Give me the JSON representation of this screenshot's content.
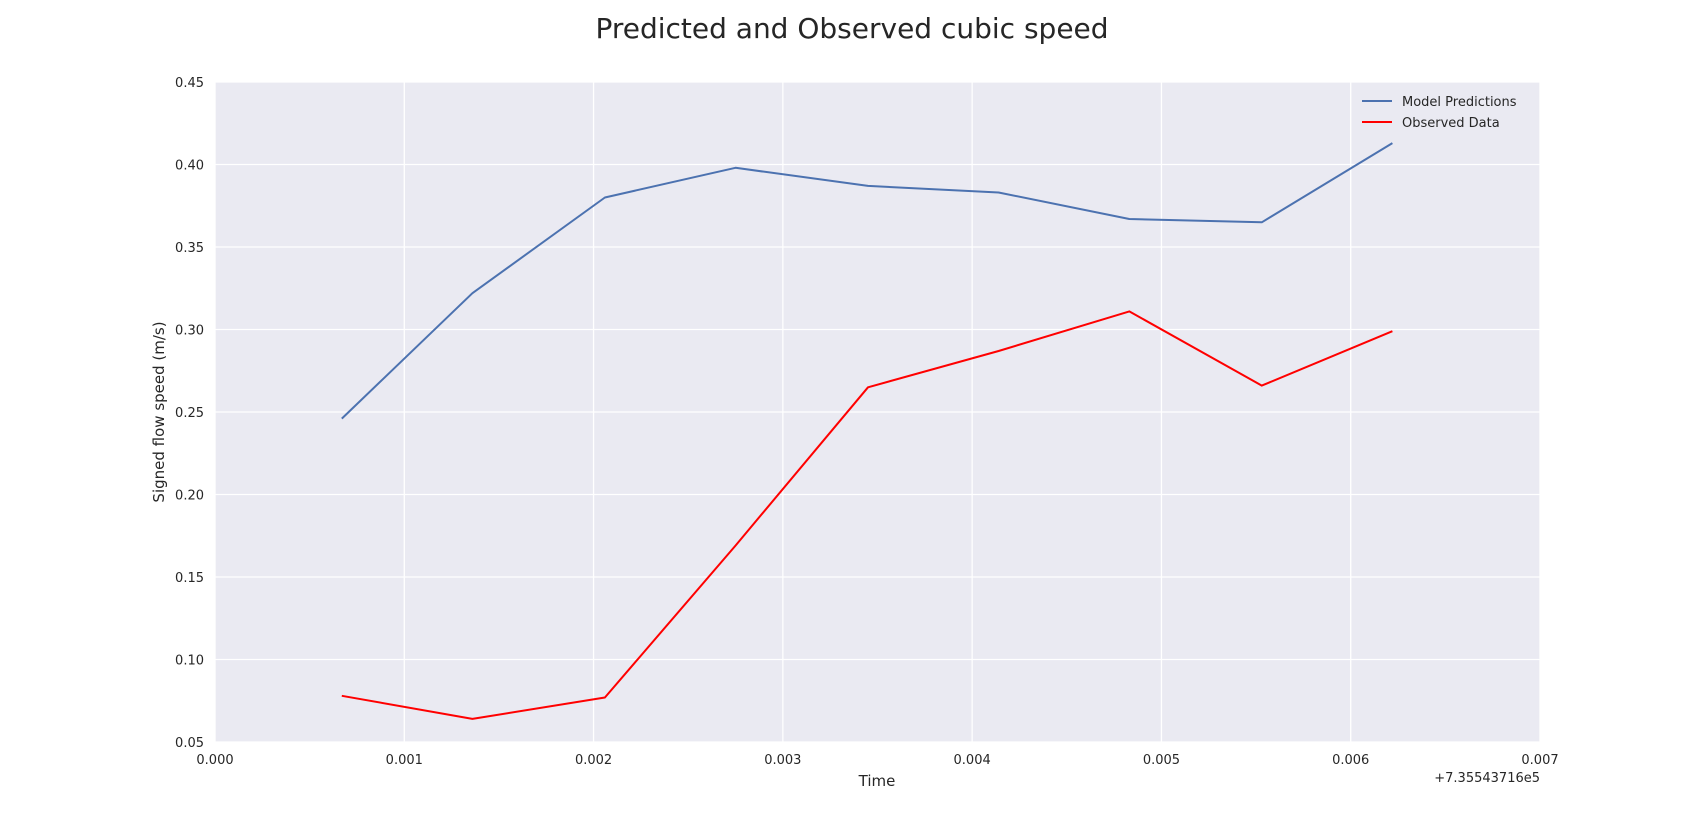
{
  "chart_data": {
    "type": "line",
    "title": "Predicted and Observed cubic speed",
    "xlabel": "Time",
    "ylabel": "Signed flow speed (m/s)",
    "x_offset_label": "+7.35543716e5",
    "xlim": [
      0.0,
      0.007
    ],
    "ylim": [
      0.05,
      0.45
    ],
    "x_ticks": [
      0.0,
      0.001,
      0.002,
      0.003,
      0.004,
      0.005,
      0.006,
      0.007
    ],
    "x_tick_labels": [
      "0.000",
      "0.001",
      "0.002",
      "0.003",
      "0.004",
      "0.005",
      "0.006",
      "0.007"
    ],
    "y_ticks": [
      0.05,
      0.1,
      0.15,
      0.2,
      0.25,
      0.3,
      0.35,
      0.4,
      0.45
    ],
    "y_tick_labels": [
      "0.05",
      "0.10",
      "0.15",
      "0.20",
      "0.25",
      "0.30",
      "0.35",
      "0.40",
      "0.45"
    ],
    "grid": true,
    "legend_position": "top-right",
    "x": [
      0.00067,
      0.00136,
      0.00206,
      0.00275,
      0.00345,
      0.00414,
      0.00483,
      0.00553,
      0.00622
    ],
    "series": [
      {
        "name": "Model Predictions",
        "color": "#4c72b0",
        "values": [
          0.246,
          0.322,
          0.38,
          0.398,
          0.387,
          0.383,
          0.367,
          0.365,
          0.413
        ]
      },
      {
        "name": "Observed Data",
        "color": "#ff0000",
        "values": [
          0.078,
          0.064,
          0.077,
          0.169,
          0.265,
          0.287,
          0.311,
          0.266,
          0.299
        ]
      }
    ]
  },
  "colors": {
    "plot_background": "#eaeaf2",
    "grid": "#ffffff",
    "text": "#262626"
  }
}
